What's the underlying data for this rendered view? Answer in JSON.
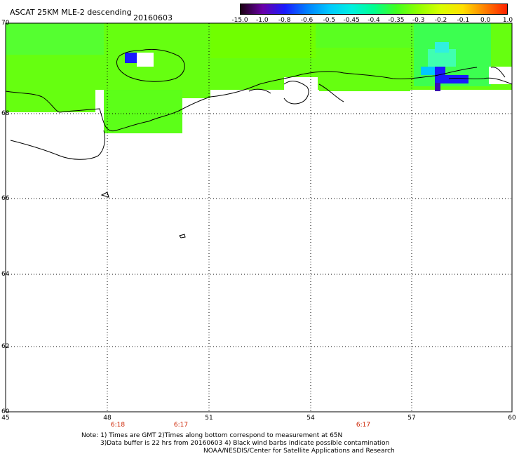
{
  "header": {
    "title": "ASCAT 25KM MLE-2 descending",
    "date": "20160603"
  },
  "colorbar": {
    "labels": [
      "-15.0",
      "-1.0",
      "-0.8",
      "-0.6",
      "-0.5",
      "-0.45",
      "-0.4",
      "-0.35",
      "-0.3",
      "-0.2",
      "-0.1",
      "0.0",
      "1.0"
    ],
    "colors": [
      "#1a0010",
      "#6a00a8",
      "#1a1aff",
      "#0080ff",
      "#00c8ff",
      "#00f0e0",
      "#00ff90",
      "#40ff20",
      "#90ff00",
      "#d8ff00",
      "#ffe000",
      "#ff8000",
      "#ff2000"
    ]
  },
  "axes": {
    "lat_labels": [
      "70",
      "68",
      "66",
      "64",
      "62",
      "60"
    ],
    "lon_labels": [
      "45",
      "48",
      "51",
      "54",
      "57",
      "60"
    ],
    "time_labels": [
      "6:18",
      "6:17",
      "6:17"
    ]
  },
  "notes": {
    "line1": "Note: 1) Times are GMT 2)Times along bottom correspond to measurement at 65N",
    "line2": "3)Data buffer is 22 hrs from 20160603 4) Black wind barbs indicate possible contamination",
    "line3": "NOAA/NESDIS/Center for Satellite Applications and Research"
  }
}
